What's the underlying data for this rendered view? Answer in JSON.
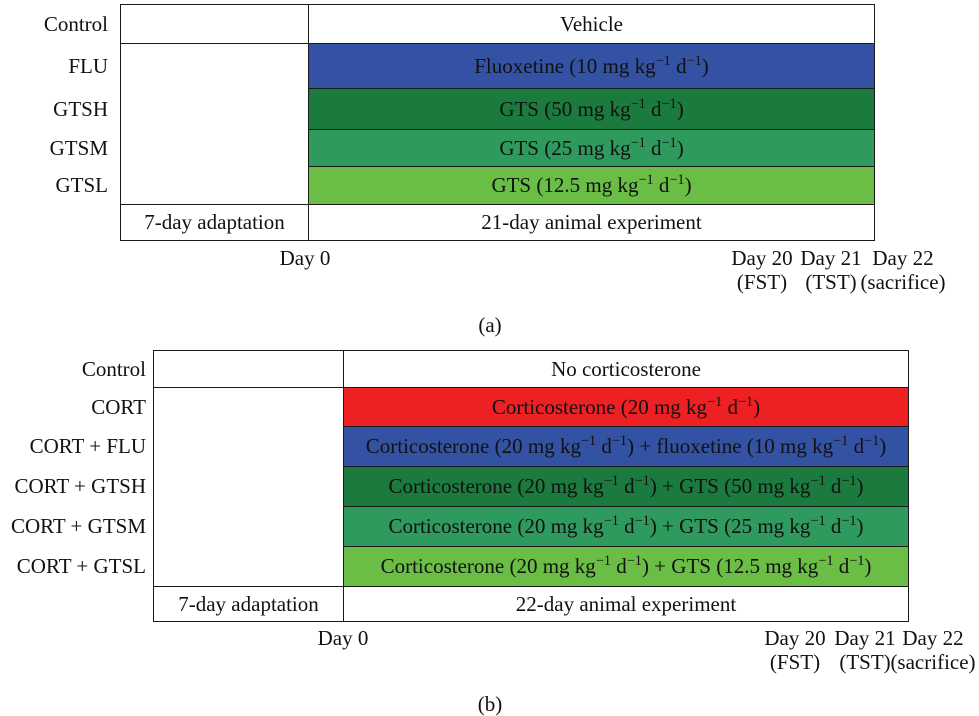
{
  "panel_a": {
    "caption": "(a)",
    "rows": [
      {
        "group": "Control",
        "treatment": [
          "Vehicle"
        ],
        "color": "#ffffff"
      },
      {
        "group": "FLU",
        "treatment": [
          "Fluoxetine (10 mg kg",
          "−1",
          " d",
          "−1",
          ")"
        ],
        "color": "#3352a3"
      },
      {
        "group": "GTSH",
        "treatment": [
          "GTS (50 mg kg",
          "−1",
          " d",
          "−1",
          ")"
        ],
        "color": "#1b7a3e"
      },
      {
        "group": "GTSM",
        "treatment": [
          "GTS (25 mg kg",
          "−1",
          " d",
          "−1",
          ")"
        ],
        "color": "#2f9a5e"
      },
      {
        "group": "GTSL",
        "treatment": [
          "GTS (12.5 mg kg",
          "−1",
          " d",
          "−1",
          ")"
        ],
        "color": "#6abd45"
      }
    ],
    "adaptation": "7-day adaptation",
    "experiment": "21-day animal experiment",
    "start_day": "Day 0",
    "days": [
      {
        "day": "Day 20",
        "test": "(FST)"
      },
      {
        "day": "Day 21",
        "test": "(TST)"
      },
      {
        "day": "Day 22",
        "test": "(sacrifice)"
      }
    ]
  },
  "panel_b": {
    "caption": "(b)",
    "rows": [
      {
        "group": "Control",
        "treatment": [
          "No corticosterone"
        ],
        "color": "#ffffff"
      },
      {
        "group": "CORT",
        "treatment": [
          "Corticosterone (20 mg kg",
          "−1",
          " d",
          "−1",
          ")"
        ],
        "color": "#ed2024"
      },
      {
        "group": "CORT + FLU",
        "treatment": [
          "Corticosterone (20 mg kg",
          "−1",
          " d",
          "−1",
          ") + fluoxetine (10 mg kg",
          "−1",
          " d",
          "−1",
          ")"
        ],
        "color": "#3352a3"
      },
      {
        "group": "CORT + GTSH",
        "treatment": [
          "Corticosterone (20 mg kg",
          "−1",
          " d",
          "−1",
          ") + GTS (50 mg kg",
          "−1",
          " d",
          "−1",
          ")"
        ],
        "color": "#1b7a3e"
      },
      {
        "group": "CORT + GTSM",
        "treatment": [
          "Corticosterone (20 mg kg",
          "−1",
          " d",
          "−1",
          ") + GTS (25 mg kg",
          "−1",
          " d",
          "−1",
          ")"
        ],
        "color": "#2f9a5e"
      },
      {
        "group": "CORT + GTSL",
        "treatment": [
          "Corticosterone (20 mg kg",
          "−1",
          " d",
          "−1",
          ") + GTS (12.5 mg kg",
          "−1",
          " d",
          "−1",
          ")"
        ],
        "color": "#6abd45"
      }
    ],
    "adaptation": "7-day adaptation",
    "experiment": "22-day animal experiment",
    "start_day": "Day 0",
    "days": [
      {
        "day": "Day 20",
        "test": "(FST)"
      },
      {
        "day": "Day 21",
        "test": "(TST)"
      },
      {
        "day": "Day 22",
        "test": "(sacrifice)"
      }
    ]
  }
}
